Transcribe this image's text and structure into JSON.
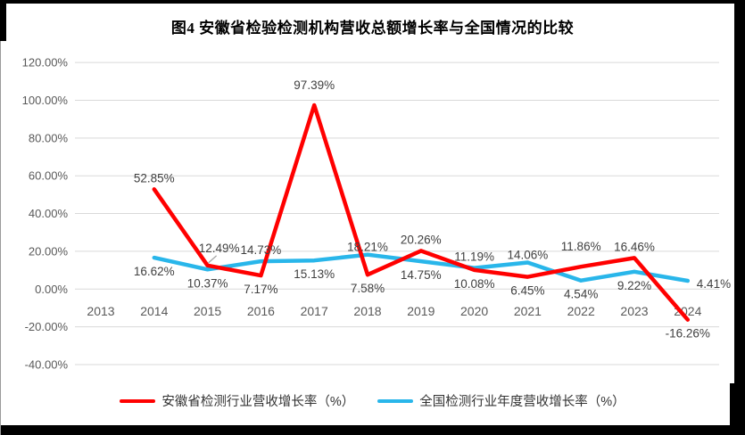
{
  "title": "图4 安徽省检验检测机构营收总额增长率与全国情况的比较",
  "colors": {
    "series_anhui": "#FF0000",
    "series_national": "#29B6EA",
    "gridline": "#D9D9D9",
    "axis_label": "#595959",
    "data_label": "#404040",
    "leader_line": "#A6A6A6",
    "frame": "#000000"
  },
  "chart_data": {
    "type": "line",
    "title": "图4 安徽省检验检测机构营收总额增长率与全国情况的比较",
    "categories": [
      "2013",
      "2014",
      "2015",
      "2016",
      "2017",
      "2018",
      "2019",
      "2020",
      "2021",
      "2022",
      "2023",
      "2024"
    ],
    "y_axis": {
      "min": -40,
      "max": 120,
      "step": 20,
      "grid": true,
      "ticks": [
        {
          "value": 120,
          "label": "120.00%"
        },
        {
          "value": 100,
          "label": "100.00%"
        },
        {
          "value": 80,
          "label": "80.00%"
        },
        {
          "value": 60,
          "label": "60.00%"
        },
        {
          "value": 40,
          "label": "40.00%"
        },
        {
          "value": 20,
          "label": "20.00%"
        },
        {
          "value": 0,
          "label": "0.00%"
        },
        {
          "value": -20,
          "label": "-20.00%"
        },
        {
          "value": -40,
          "label": "-40.00%"
        }
      ]
    },
    "legend_position": "bottom",
    "series": [
      {
        "name": "安徽省检测行业营收增长率（%）",
        "color": "#FF0000",
        "values": [
          null,
          52.85,
          12.49,
          7.17,
          97.39,
          7.58,
          20.26,
          10.08,
          6.45,
          11.86,
          16.46,
          -16.26
        ],
        "data_labels": [
          null,
          "52.85%",
          "12.49%",
          "7.17%",
          "97.39%",
          "7.58%",
          "20.26%",
          "10.08%",
          "6.45%",
          "11.86%",
          "16.46%",
          "-16.26%"
        ],
        "label_pos": [
          null,
          "above",
          "leader",
          "below",
          "above",
          "below",
          "above",
          "below",
          "below",
          "above",
          "above",
          "below"
        ],
        "label_dy": [
          0,
          0,
          0,
          0,
          -10,
          0,
          0,
          0,
          0,
          -10,
          0,
          0
        ]
      },
      {
        "name": "全国检测行业年度营收增长率（%）",
        "color": "#29B6EA",
        "values": [
          null,
          16.62,
          10.37,
          14.73,
          15.13,
          18.21,
          14.75,
          11.19,
          14.06,
          4.54,
          9.22,
          4.41
        ],
        "data_labels": [
          null,
          "16.62%",
          "10.37%",
          "14.73%",
          "15.13%",
          "18.21%",
          "14.75%",
          "11.19%",
          "14.06%",
          "4.54%",
          "9.22%",
          "4.41%"
        ],
        "label_pos": [
          null,
          "below",
          "below",
          "above",
          "below",
          "above",
          "below",
          "above",
          "above",
          "below",
          "below",
          "right"
        ],
        "label_dy": [
          0,
          0,
          0,
          0,
          0,
          4,
          0,
          0,
          4,
          0,
          0,
          0
        ]
      }
    ]
  }
}
